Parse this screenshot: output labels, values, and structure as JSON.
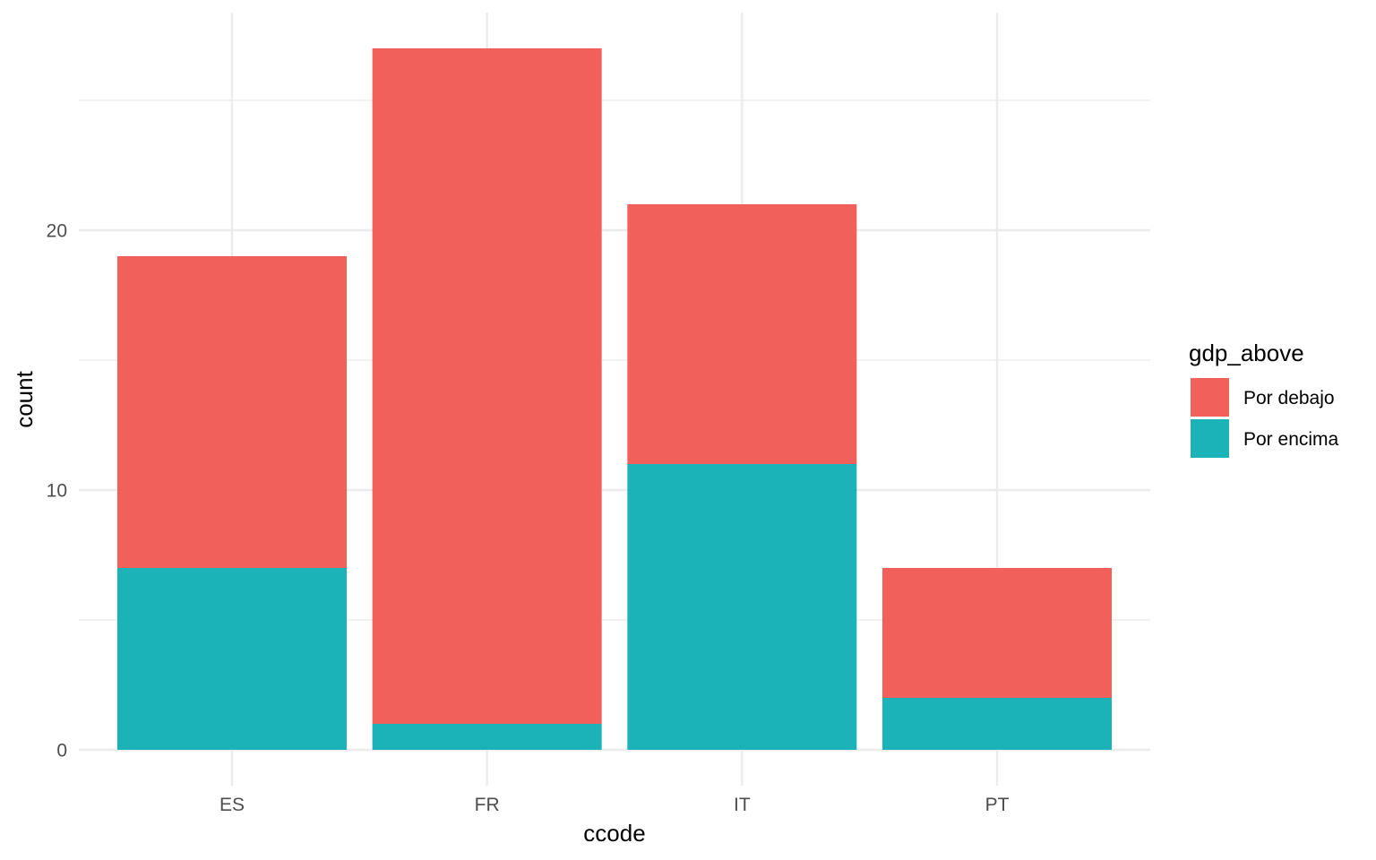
{
  "chart_data": {
    "type": "bar",
    "stacked": true,
    "categories": [
      "ES",
      "FR",
      "IT",
      "PT"
    ],
    "series": [
      {
        "name": "Por debajo",
        "values": [
          12,
          26,
          10,
          5
        ],
        "color": "#F2605C"
      },
      {
        "name": "Por encima",
        "values": [
          7,
          1,
          11,
          2
        ],
        "color": "#1BB3B8"
      }
    ],
    "xlabel": "ccode",
    "ylabel": "count",
    "ylim": [
      0,
      28
    ],
    "y_ticks": [
      0,
      10,
      20
    ],
    "y_tick_labels": [
      "0",
      "10",
      "20"
    ],
    "grid": true,
    "legend": {
      "title": "gdp_above",
      "position": "right",
      "entries": [
        "Por debajo",
        "Por encima"
      ]
    }
  }
}
